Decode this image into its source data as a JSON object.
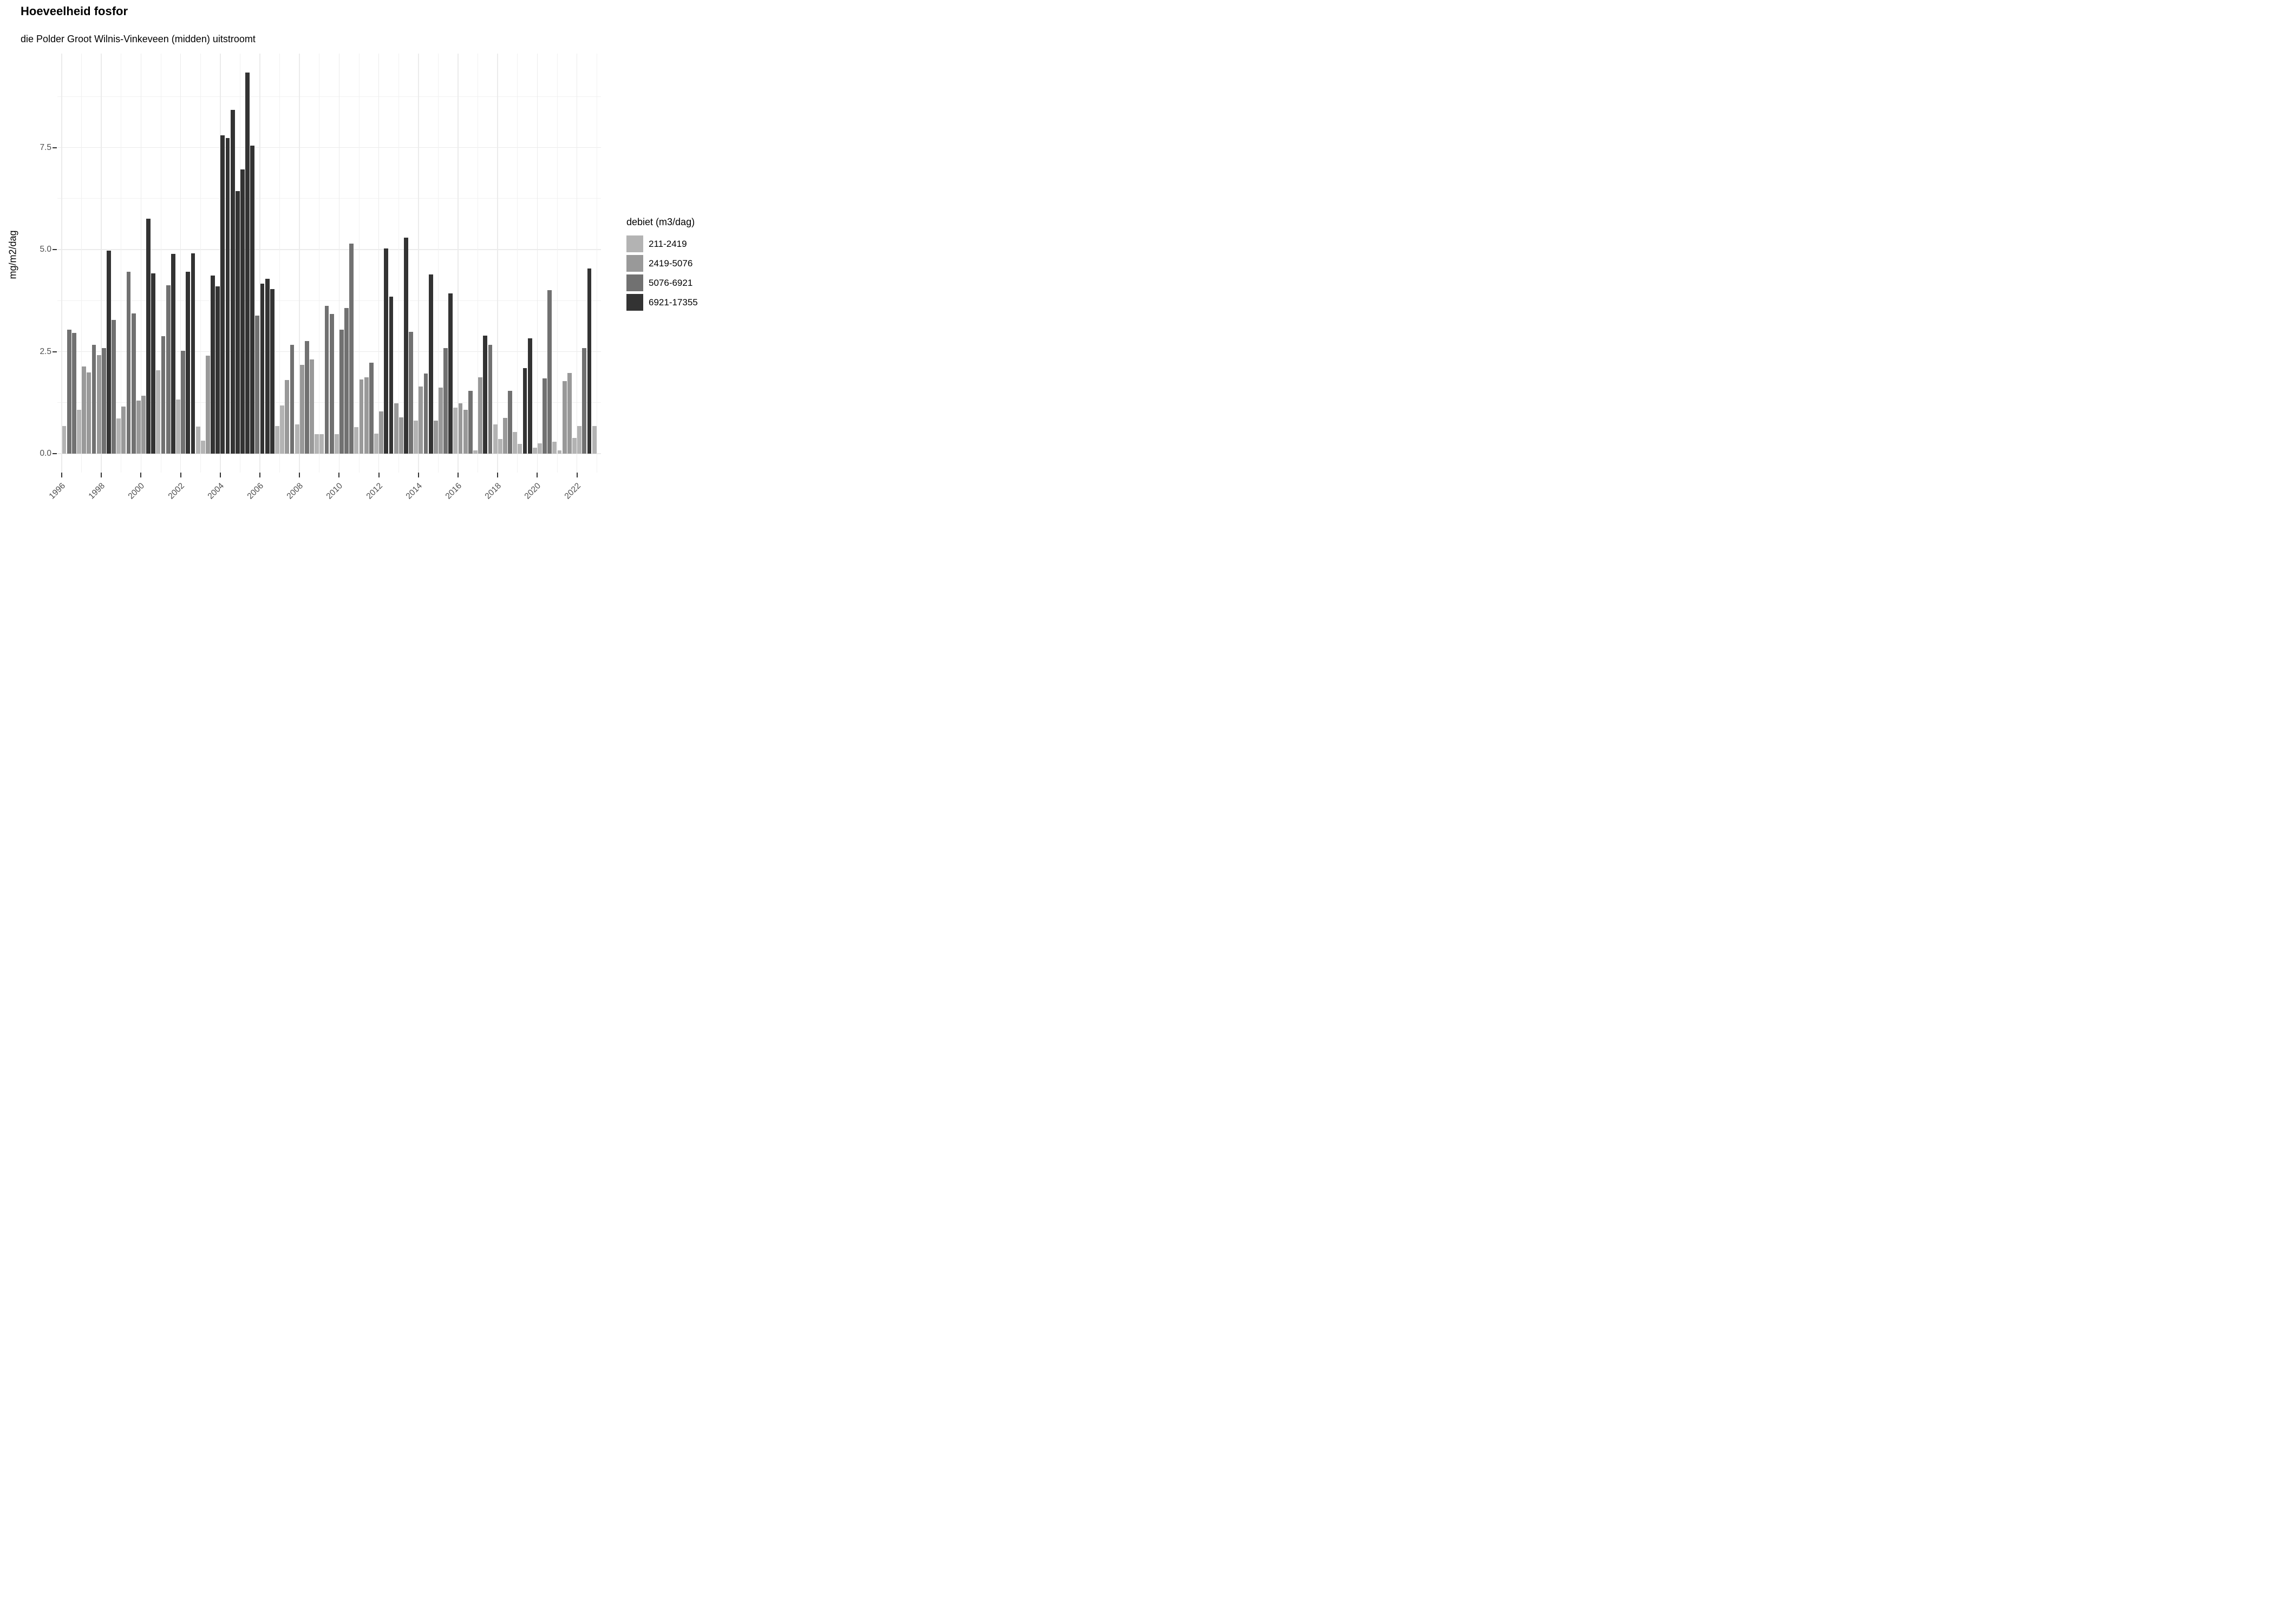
{
  "header": {
    "title": "Hoeveelheid fosfor",
    "subtitle": "die Polder Groot Wilnis-Vinkeveen (midden) uitstroomt"
  },
  "y_axis": {
    "label": "mg/m2/dag",
    "tick_labels": [
      "7.5",
      "5.0",
      "2.5",
      "0.0"
    ]
  },
  "x_axis": {
    "tick_labels": [
      "1996",
      "1998",
      "2000",
      "2002",
      "2004",
      "2006",
      "2008",
      "2010",
      "2012",
      "2014",
      "2016",
      "2018",
      "2020",
      "2022"
    ]
  },
  "legend": {
    "title": "debiet (m3/dag)",
    "items": [
      {
        "label": "211-2419",
        "color": "#b3b3b3"
      },
      {
        "label": "2419-5076",
        "color": "#999999"
      },
      {
        "label": "5076-6921",
        "color": "#717171"
      },
      {
        "label": "6921-17355",
        "color": "#333333"
      }
    ]
  },
  "chart_data": {
    "type": "bar",
    "title": "Hoeveelheid fosfor",
    "subtitle": "die Polder Groot Wilnis-Vinkeveen (midden) uitstroomt",
    "xlabel": "",
    "ylabel": "mg/m2/dag",
    "unit_note": "quarterly bars, 4 per year, fill = debiet (m3/dag) class",
    "ylim": [
      0,
      9.34
    ],
    "y_major_breaks": [
      0,
      2.5,
      5.0,
      7.5
    ],
    "y_minor_breaks": [
      1.25,
      3.75,
      6.25,
      8.75
    ],
    "x_labeled_years": [
      1996,
      1998,
      2000,
      2002,
      2004,
      2006,
      2008,
      2010,
      2012,
      2014,
      2016,
      2018,
      2020,
      2022
    ],
    "x_gridline_years": [
      1996,
      1997,
      1998,
      1999,
      2000,
      2001,
      2002,
      2003,
      2004,
      2005,
      2006,
      2007,
      2008,
      2009,
      2010,
      2011,
      2012,
      2013,
      2014,
      2015,
      2016,
      2017,
      2018,
      2019,
      2020,
      2021,
      2022,
      2023
    ],
    "grid": true,
    "legend_position": "right",
    "categories_legend": [
      "211-2419",
      "2419-5076",
      "5076-6921",
      "6921-17355"
    ],
    "colors": [
      "#b3b3b3",
      "#999999",
      "#717171",
      "#333333"
    ],
    "series": [
      {
        "year": 1996,
        "quarters": [
          {
            "v": 0.67,
            "c": 0
          },
          {
            "v": 3.04,
            "c": 2
          },
          {
            "v": 2.96,
            "c": 2
          },
          {
            "v": 1.08,
            "c": 0
          }
        ]
      },
      {
        "year": 1997,
        "quarters": [
          {
            "v": 2.13,
            "c": 1
          },
          {
            "v": 1.99,
            "c": 1
          },
          {
            "v": 2.67,
            "c": 2
          },
          {
            "v": 2.41,
            "c": 1
          }
        ]
      },
      {
        "year": 1998,
        "quarters": [
          {
            "v": 2.59,
            "c": 2
          },
          {
            "v": 4.97,
            "c": 3
          },
          {
            "v": 3.28,
            "c": 2
          },
          {
            "v": 0.86,
            "c": 0
          }
        ]
      },
      {
        "year": 1999,
        "quarters": [
          {
            "v": 1.16,
            "c": 1
          },
          {
            "v": 4.46,
            "c": 2
          },
          {
            "v": 3.44,
            "c": 2
          },
          {
            "v": 1.3,
            "c": 1
          }
        ]
      },
      {
        "year": 2000,
        "quarters": [
          {
            "v": 1.42,
            "c": 1
          },
          {
            "v": 5.75,
            "c": 3
          },
          {
            "v": 4.41,
            "c": 3
          },
          {
            "v": 2.04,
            "c": 0
          }
        ]
      },
      {
        "year": 2001,
        "quarters": [
          {
            "v": 2.88,
            "c": 2
          },
          {
            "v": 4.13,
            "c": 2
          },
          {
            "v": 4.89,
            "c": 3
          },
          {
            "v": 1.33,
            "c": 0
          }
        ]
      },
      {
        "year": 2002,
        "quarters": [
          {
            "v": 2.52,
            "c": 2
          },
          {
            "v": 4.46,
            "c": 3
          },
          {
            "v": 4.91,
            "c": 3
          },
          {
            "v": 0.66,
            "c": 0
          }
        ]
      },
      {
        "year": 2003,
        "quarters": [
          {
            "v": 0.32,
            "c": 0
          },
          {
            "v": 2.4,
            "c": 1
          },
          {
            "v": 4.36,
            "c": 3
          },
          {
            "v": 4.1,
            "c": 3
          }
        ]
      },
      {
        "year": 2004,
        "quarters": [
          {
            "v": 7.8,
            "c": 3
          },
          {
            "v": 7.73,
            "c": 3
          },
          {
            "v": 8.42,
            "c": 3
          },
          {
            "v": 6.43,
            "c": 3
          }
        ]
      },
      {
        "year": 2005,
        "quarters": [
          {
            "v": 6.96,
            "c": 3
          },
          {
            "v": 9.34,
            "c": 3
          },
          {
            "v": 7.55,
            "c": 3
          },
          {
            "v": 3.38,
            "c": 2
          }
        ]
      },
      {
        "year": 2006,
        "quarters": [
          {
            "v": 4.17,
            "c": 3
          },
          {
            "v": 4.29,
            "c": 3
          },
          {
            "v": 4.03,
            "c": 3
          },
          {
            "v": 0.68,
            "c": 0
          }
        ]
      },
      {
        "year": 2007,
        "quarters": [
          {
            "v": 1.18,
            "c": 0
          },
          {
            "v": 1.8,
            "c": 1
          },
          {
            "v": 2.66,
            "c": 2
          },
          {
            "v": 0.71,
            "c": 0
          }
        ]
      },
      {
        "year": 2008,
        "quarters": [
          {
            "v": 2.18,
            "c": 1
          },
          {
            "v": 2.76,
            "c": 2
          },
          {
            "v": 2.31,
            "c": 1
          },
          {
            "v": 0.48,
            "c": 0
          }
        ]
      },
      {
        "year": 2009,
        "quarters": [
          {
            "v": 0.48,
            "c": 0
          },
          {
            "v": 3.62,
            "c": 2
          },
          {
            "v": 3.42,
            "c": 2
          },
          {
            "v": 0.48,
            "c": 0
          }
        ]
      },
      {
        "year": 2010,
        "quarters": [
          {
            "v": 3.04,
            "c": 2
          },
          {
            "v": 3.57,
            "c": 2
          },
          {
            "v": 5.14,
            "c": 2
          },
          {
            "v": 0.65,
            "c": 0
          }
        ]
      },
      {
        "year": 2011,
        "quarters": [
          {
            "v": 1.82,
            "c": 1
          },
          {
            "v": 1.87,
            "c": 1
          },
          {
            "v": 2.23,
            "c": 2
          },
          {
            "v": 0.49,
            "c": 0
          }
        ]
      },
      {
        "year": 2012,
        "quarters": [
          {
            "v": 1.04,
            "c": 1
          },
          {
            "v": 5.03,
            "c": 3
          },
          {
            "v": 3.84,
            "c": 3
          },
          {
            "v": 1.24,
            "c": 1
          }
        ]
      },
      {
        "year": 2013,
        "quarters": [
          {
            "v": 0.89,
            "c": 1
          },
          {
            "v": 5.29,
            "c": 3
          },
          {
            "v": 2.99,
            "c": 2
          },
          {
            "v": 0.81,
            "c": 0
          }
        ]
      },
      {
        "year": 2014,
        "quarters": [
          {
            "v": 1.64,
            "c": 1
          },
          {
            "v": 1.96,
            "c": 2
          },
          {
            "v": 4.39,
            "c": 3
          },
          {
            "v": 0.81,
            "c": 1
          }
        ]
      },
      {
        "year": 2015,
        "quarters": [
          {
            "v": 1.62,
            "c": 1
          },
          {
            "v": 2.59,
            "c": 2
          },
          {
            "v": 3.93,
            "c": 3
          },
          {
            "v": 1.13,
            "c": 0
          }
        ]
      },
      {
        "year": 2016,
        "quarters": [
          {
            "v": 1.23,
            "c": 1
          },
          {
            "v": 1.07,
            "c": 1
          },
          {
            "v": 1.54,
            "c": 2
          },
          {
            "v": 0.08,
            "c": 0
          }
        ]
      },
      {
        "year": 2017,
        "quarters": [
          {
            "v": 1.87,
            "c": 1
          },
          {
            "v": 2.89,
            "c": 3
          },
          {
            "v": 2.67,
            "c": 2
          },
          {
            "v": 0.71,
            "c": 0
          }
        ]
      },
      {
        "year": 2018,
        "quarters": [
          {
            "v": 0.36,
            "c": 0
          },
          {
            "v": 0.87,
            "c": 1
          },
          {
            "v": 1.54,
            "c": 2
          },
          {
            "v": 0.53,
            "c": 0
          }
        ]
      },
      {
        "year": 2019,
        "quarters": [
          {
            "v": 0.24,
            "c": 0
          },
          {
            "v": 2.1,
            "c": 3
          },
          {
            "v": 2.83,
            "c": 3
          },
          {
            "v": 0.14,
            "c": 0
          }
        ]
      },
      {
        "year": 2020,
        "quarters": [
          {
            "v": 0.25,
            "c": 0
          },
          {
            "v": 1.85,
            "c": 2
          },
          {
            "v": 4.01,
            "c": 2
          },
          {
            "v": 0.29,
            "c": 0
          }
        ]
      },
      {
        "year": 2021,
        "quarters": [
          {
            "v": 0.08,
            "c": 0
          },
          {
            "v": 1.78,
            "c": 1
          },
          {
            "v": 1.97,
            "c": 1
          },
          {
            "v": 0.39,
            "c": 0
          }
        ]
      },
      {
        "year": 2022,
        "quarters": [
          {
            "v": 0.67,
            "c": 0
          },
          {
            "v": 2.58,
            "c": 2
          },
          {
            "v": 4.54,
            "c": 3
          },
          {
            "v": 0.67,
            "c": 0
          }
        ]
      }
    ]
  }
}
